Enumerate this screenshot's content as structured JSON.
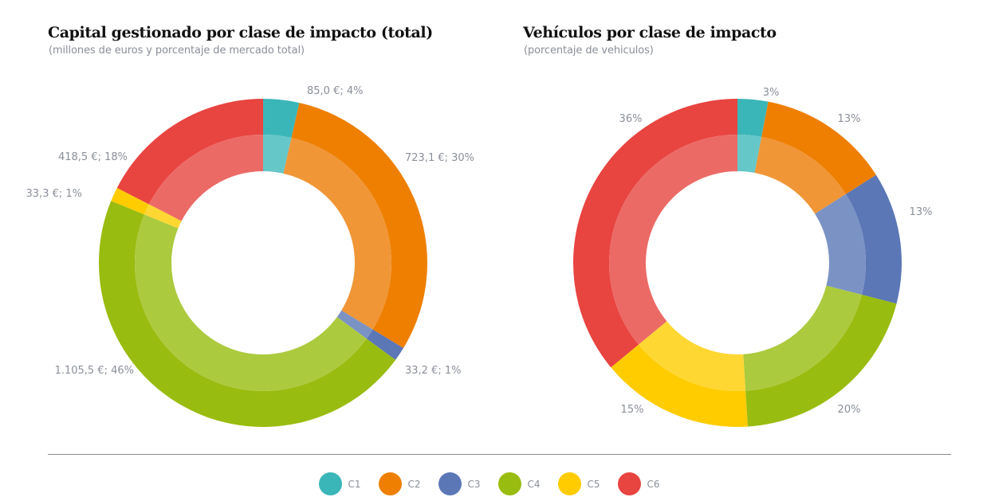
{
  "classes": [
    {
      "id": "C1",
      "label": "C1",
      "color": "#3bb6b8",
      "inner_color": "#66c7c8"
    },
    {
      "id": "C2",
      "label": "C2",
      "color": "#ee7f00",
      "inner_color": "#f09637"
    },
    {
      "id": "C3",
      "label": "C3",
      "color": "#5b77b6",
      "inner_color": "#7b93c4"
    },
    {
      "id": "C4",
      "label": "C4",
      "color": "#99bc10",
      "inner_color": "#acca3e"
    },
    {
      "id": "C5",
      "label": "C5",
      "color": "#ffcc00",
      "inner_color": "#ffd733"
    },
    {
      "id": "C6",
      "label": "C6",
      "color": "#e84440",
      "inner_color": "#ec6a66"
    }
  ],
  "chart_data": [
    {
      "type": "pie",
      "variant": "donut",
      "title": "Capital gestionado por clase de impacto (total)",
      "subtitle": "(millones de euros y porcentaje de mercado total)",
      "categories": [
        "C1",
        "C2",
        "C3",
        "C4",
        "C5",
        "C6"
      ],
      "values": [
        85.0,
        723.1,
        33.2,
        1105.5,
        33.3,
        418.5
      ],
      "unit": "millones de euros",
      "percentages": [
        4,
        30,
        1,
        46,
        1,
        18
      ],
      "data_labels": [
        "85,0 €; 4%",
        "723,1 €; 30%",
        "33,2 €; 1%",
        "1.105,5 €; 46%",
        "33,3 €; 1%",
        "418,5 €; 18%"
      ],
      "start_angle": "12 o'clock",
      "direction": "clockwise"
    },
    {
      "type": "pie",
      "variant": "donut",
      "title": "Vehículos por clase de impacto",
      "subtitle": "(porcentaje de vehiculos)",
      "categories": [
        "C1",
        "C2",
        "C3",
        "C4",
        "C5",
        "C6"
      ],
      "values": [
        3,
        13,
        13,
        20,
        15,
        36
      ],
      "unit": "%",
      "data_labels": [
        "3%",
        "13%",
        "13%",
        "20%",
        "15%",
        "36%"
      ],
      "start_angle": "12 o'clock",
      "direction": "clockwise"
    }
  ],
  "legend": {
    "placement": "bottom-center",
    "items": [
      "C1",
      "C2",
      "C3",
      "C4",
      "C5",
      "C6"
    ]
  }
}
